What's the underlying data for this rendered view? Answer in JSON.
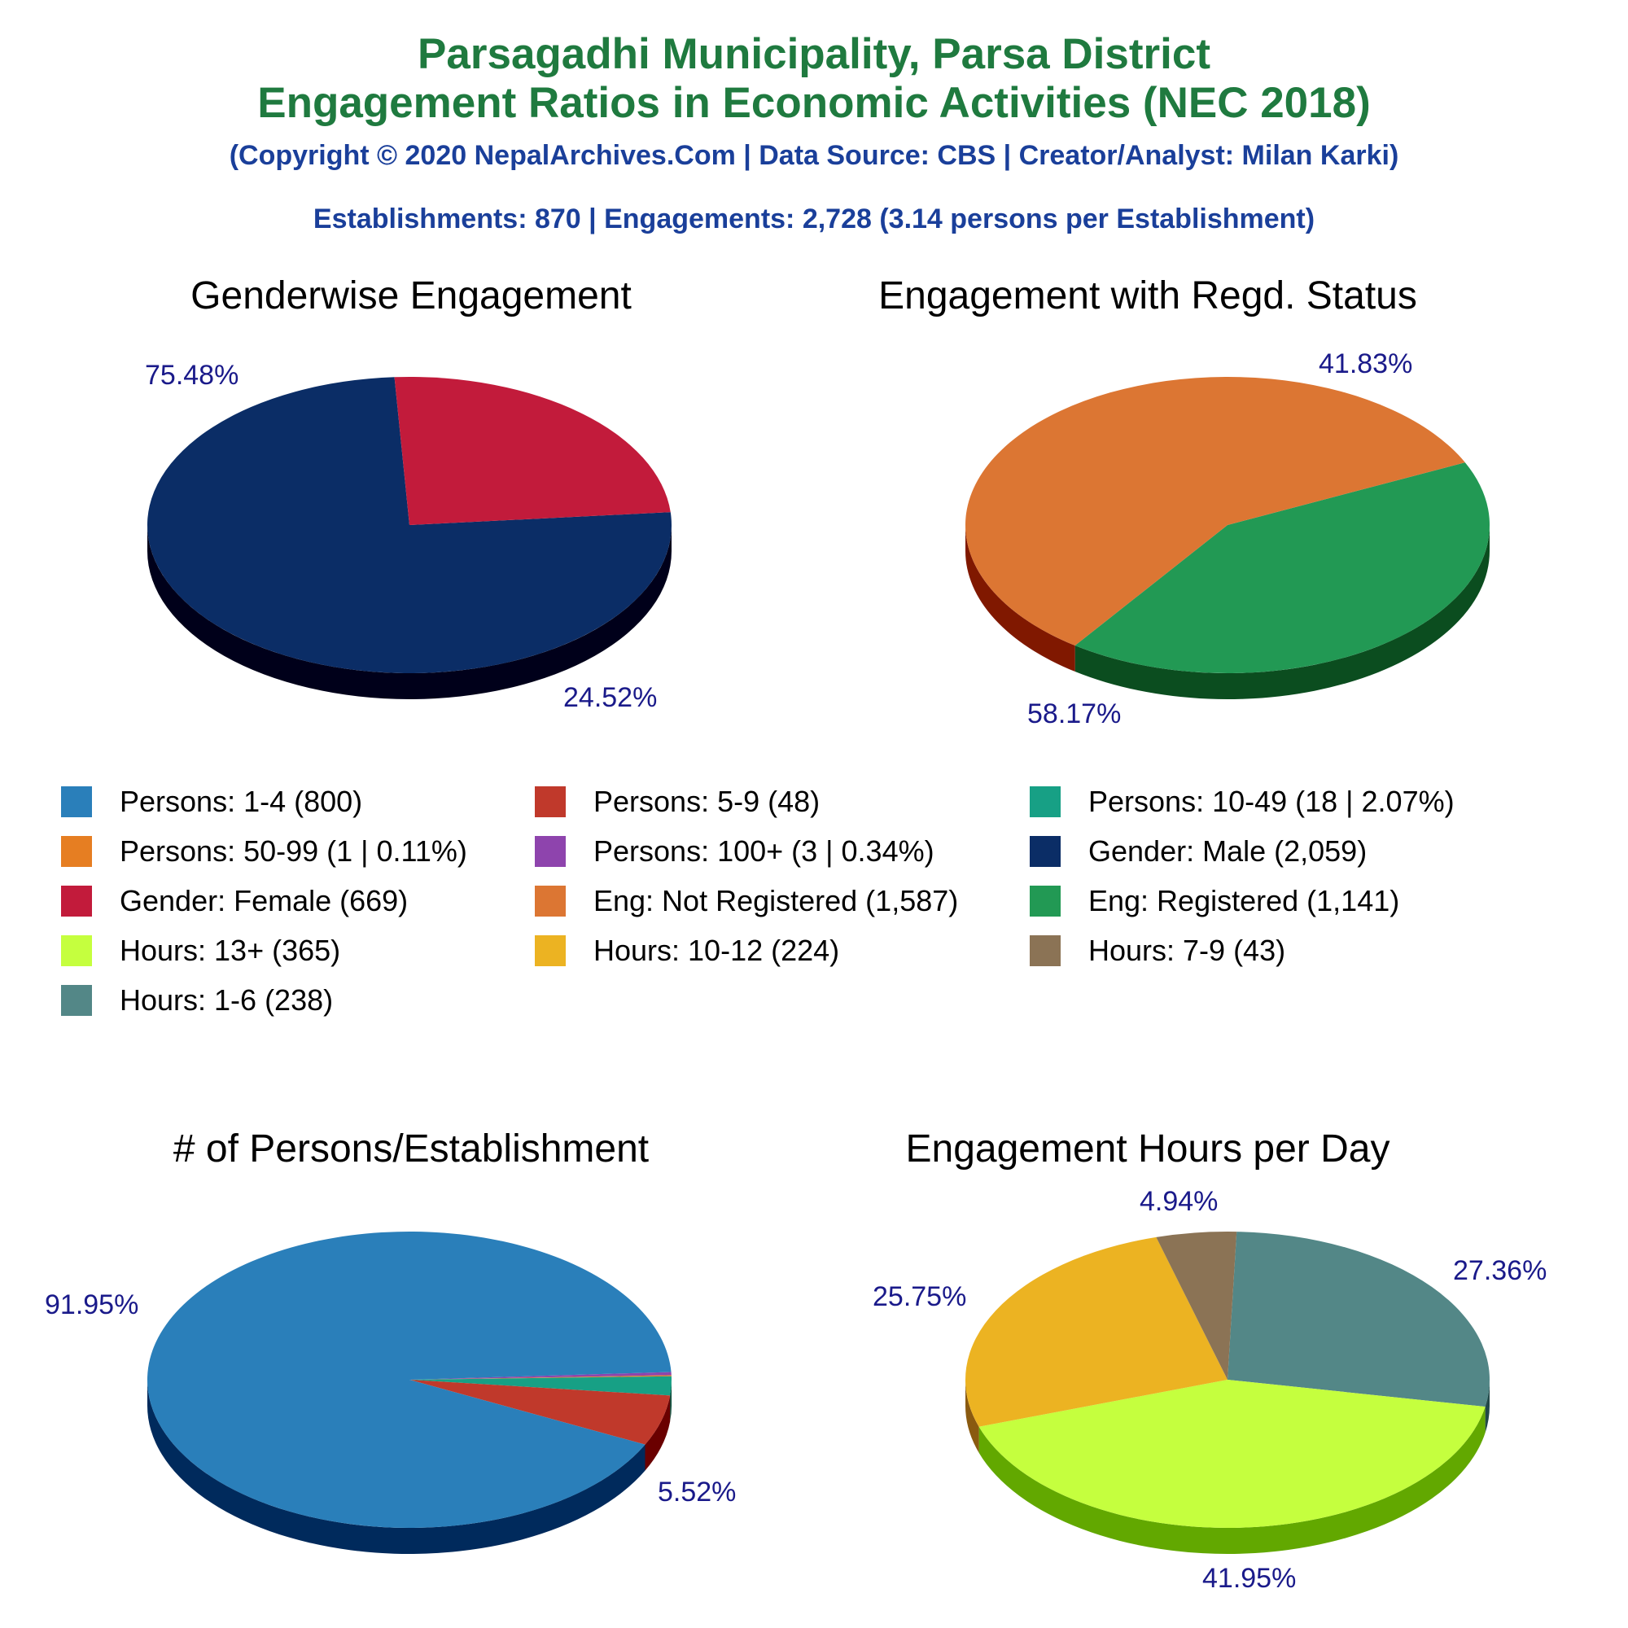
{
  "header": {
    "title_line1": "Parsagadhi Municipality, Parsa District",
    "title_line2": "Engagement Ratios in Economic Activities (NEC 2018)",
    "copyright": "(Copyright © 2020 NepalArchives.Com | Data Source: CBS | Creator/Analyst: Milan Karki)",
    "summary": "Establishments: 870 | Engagements: 2,728 (3.14 persons per Establishment)"
  },
  "legend": [
    {
      "label": "Persons: 1-4 (800)",
      "color": "#2a7fba"
    },
    {
      "label": "Persons: 5-9 (48)",
      "color": "#c0392b"
    },
    {
      "label": "Persons: 10-49 (18 | 2.07%)",
      "color": "#17a085"
    },
    {
      "label": "Persons: 50-99 (1 | 0.11%)",
      "color": "#e67e22"
    },
    {
      "label": "Persons: 100+ (3 | 0.34%)",
      "color": "#8e44ad"
    },
    {
      "label": "Gender: Male (2,059)",
      "color": "#0b2d66"
    },
    {
      "label": "Gender: Female (669)",
      "color": "#c21b3b"
    },
    {
      "label": "Eng: Not Registered (1,587)",
      "color": "#dc7633"
    },
    {
      "label": "Eng: Registered (1,141)",
      "color": "#229954"
    },
    {
      "label": "Hours: 13+ (365)",
      "color": "#c5ff3e"
    },
    {
      "label": "Hours: 10-12 (224)",
      "color": "#ecb322"
    },
    {
      "label": "Hours: 7-9 (43)",
      "color": "#8b7355"
    },
    {
      "label": "Hours: 1-6 (238)",
      "color": "#538787"
    }
  ],
  "chart_data": [
    {
      "type": "pie",
      "title": "Genderwise Engagement",
      "slices": [
        {
          "name": "Male",
          "value": 2059,
          "percent_label": "75.48%",
          "color": "#0b2d66",
          "side": "#00001a"
        },
        {
          "name": "Female",
          "value": 669,
          "percent_label": "24.52%",
          "color": "#c21b3b",
          "side": "#6a0000"
        }
      ]
    },
    {
      "type": "pie",
      "title": "Engagement with Regd. Status",
      "slices": [
        {
          "name": "Registered",
          "value": 1141,
          "percent_label": "41.83%",
          "color": "#229954",
          "side": "#0b4d1f"
        },
        {
          "name": "Not Registered",
          "value": 1587,
          "percent_label": "58.17%",
          "color": "#dc7633",
          "side": "#801800"
        }
      ]
    },
    {
      "type": "pie",
      "title": "# of Persons/Establishment",
      "slices": [
        {
          "name": "100+",
          "value": 3,
          "percent_label": "",
          "color": "#8e44ad",
          "side": "#3d0f55"
        },
        {
          "name": "50-99",
          "value": 1,
          "percent_label": "",
          "color": "#e67e22",
          "side": "#803a00"
        },
        {
          "name": "10-49",
          "value": 18,
          "percent_label": "",
          "color": "#17a085",
          "side": "#004a36"
        },
        {
          "name": "5-9",
          "value": 48,
          "percent_label": "5.52%",
          "color": "#c0392b",
          "side": "#6a0000"
        },
        {
          "name": "1-4",
          "value": 800,
          "percent_label": "91.95%",
          "color": "#2a7fba",
          "side": "#002a5c"
        }
      ]
    },
    {
      "type": "pie",
      "title": "Engagement Hours per Day",
      "slices": [
        {
          "name": "1-6",
          "value": 238,
          "percent_label": "27.36%",
          "color": "#538787",
          "side": "#224848"
        },
        {
          "name": "13+",
          "value": 365,
          "percent_label": "41.95%",
          "color": "#c5ff3e",
          "side": "#62a800"
        },
        {
          "name": "10-12",
          "value": 224,
          "percent_label": "25.75%",
          "color": "#ecb322",
          "side": "#8a5a10"
        },
        {
          "name": "7-9",
          "value": 43,
          "percent_label": "4.94%",
          "color": "#8b7355",
          "side": "#4a3a25"
        }
      ]
    }
  ]
}
